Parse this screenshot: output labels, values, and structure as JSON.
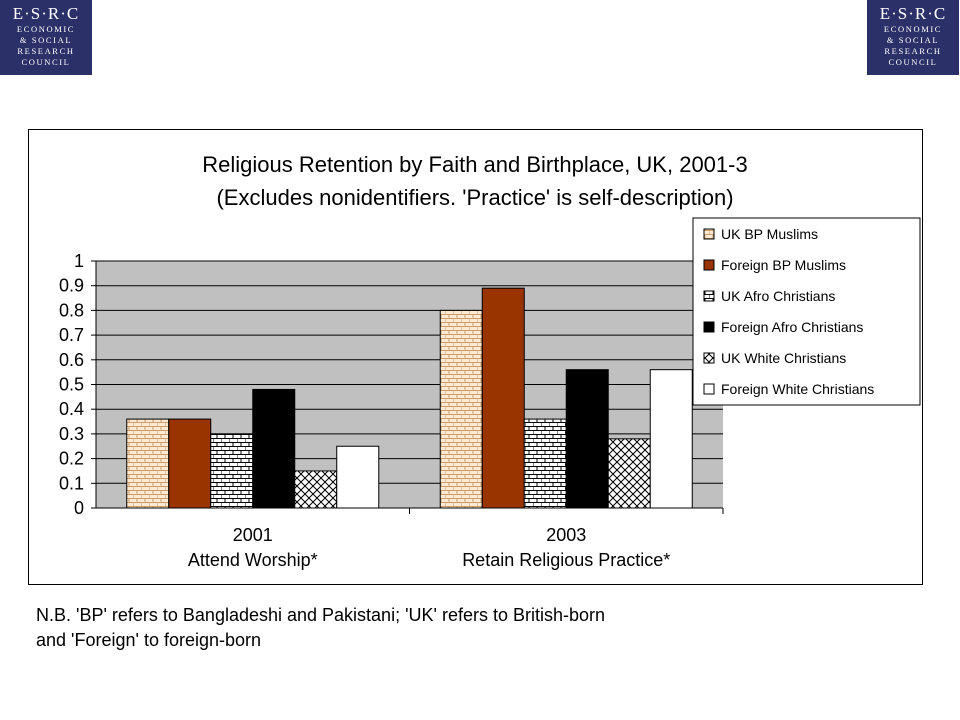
{
  "logo": {
    "line1": "E·S·R·C",
    "line2": "ECONOMIC",
    "line3": "& SOCIAL",
    "line4": "RESEARCH",
    "line5": "COUNCIL"
  },
  "note_line1": "N.B. 'BP' refers to Bangladeshi and Pakistani; 'UK' refers to British-born",
  "note_line2": "and 'Foreign' to foreign-born",
  "colors": {
    "plot_bg": "#c0c0c0",
    "foreign_bp": "#993300",
    "black": "#000000",
    "white": "#ffffff",
    "brick_bg": "#fde9d1",
    "brick_line": "#c8a070"
  },
  "chart_data": {
    "type": "bar",
    "title": "Religious Retention by Faith and Birthplace, UK, 2001-3",
    "subtitle": "(Excludes nonidentifiers. 'Practice' is self-description)",
    "categories": [
      "2001",
      "2003"
    ],
    "category_sublabels": [
      "Attend Worship*",
      "Retain Religious Practice*"
    ],
    "ylim": [
      0,
      1
    ],
    "yticks": [
      "0",
      "0.1",
      "0.2",
      "0.3",
      "0.4",
      "0.5",
      "0.6",
      "0.7",
      "0.8",
      "0.9",
      "1"
    ],
    "grid": true,
    "legend_position": "right",
    "series": [
      {
        "name": "UK BP Muslims",
        "values": [
          0.36,
          0.8
        ],
        "pattern": "brick-tan"
      },
      {
        "name": "Foreign BP Muslims",
        "values": [
          0.36,
          0.89
        ],
        "pattern": "solid-brown"
      },
      {
        "name": "UK Afro Christians",
        "values": [
          0.3,
          0.36
        ],
        "pattern": "brick-white"
      },
      {
        "name": "Foreign Afro Christians",
        "values": [
          0.48,
          0.56
        ],
        "pattern": "solid-black"
      },
      {
        "name": "UK White Christians",
        "values": [
          0.15,
          0.28
        ],
        "pattern": "crosshatch"
      },
      {
        "name": "Foreign White Christians",
        "values": [
          0.25,
          0.56
        ],
        "pattern": "solid-white"
      }
    ]
  }
}
